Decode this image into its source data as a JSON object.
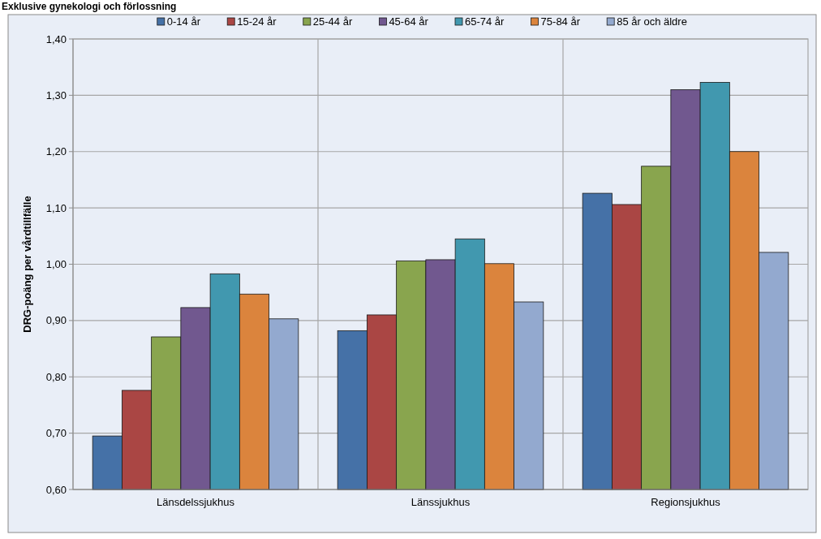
{
  "chart_data": {
    "type": "bar",
    "title": "Exklusive gynekologi och förlossning",
    "ylabel": "DRG-poäng per vårdtillfälle",
    "categories": [
      "Länsdelssjukhus",
      "Länssjukhus",
      "Regionsjukhus"
    ],
    "series": [
      {
        "name": "0-14 år",
        "color": "#4571a7",
        "values": [
          0.695,
          0.882,
          1.126
        ]
      },
      {
        "name": "15-24 år",
        "color": "#aa4644",
        "values": [
          0.776,
          0.91,
          1.106
        ]
      },
      {
        "name": "25-44 år",
        "color": "#89a54e",
        "values": [
          0.871,
          1.006,
          1.174
        ]
      },
      {
        "name": "45-64 år",
        "color": "#71588f",
        "values": [
          0.923,
          1.008,
          1.31
        ]
      },
      {
        "name": "65-74 år",
        "color": "#4198af",
        "values": [
          0.983,
          1.045,
          1.323
        ]
      },
      {
        "name": "75-84 år",
        "color": "#db843d",
        "values": [
          0.947,
          1.001,
          1.2
        ]
      },
      {
        "name": "85 år och äldre",
        "color": "#93a9cf",
        "values": [
          0.903,
          0.933,
          1.021
        ]
      }
    ],
    "ylim": [
      0.6,
      1.4
    ],
    "yticks": [
      {
        "value": 0.6,
        "label": "0,60"
      },
      {
        "value": 0.7,
        "label": "0,70"
      },
      {
        "value": 0.8,
        "label": "0,80"
      },
      {
        "value": 0.9,
        "label": "0,90"
      },
      {
        "value": 1.0,
        "label": "1,00"
      },
      {
        "value": 1.1,
        "label": "1,10"
      },
      {
        "value": 1.2,
        "label": "1,20"
      },
      {
        "value": 1.3,
        "label": "1,30"
      },
      {
        "value": 1.4,
        "label": "1,40"
      }
    ],
    "grid": true,
    "legend": "top"
  }
}
